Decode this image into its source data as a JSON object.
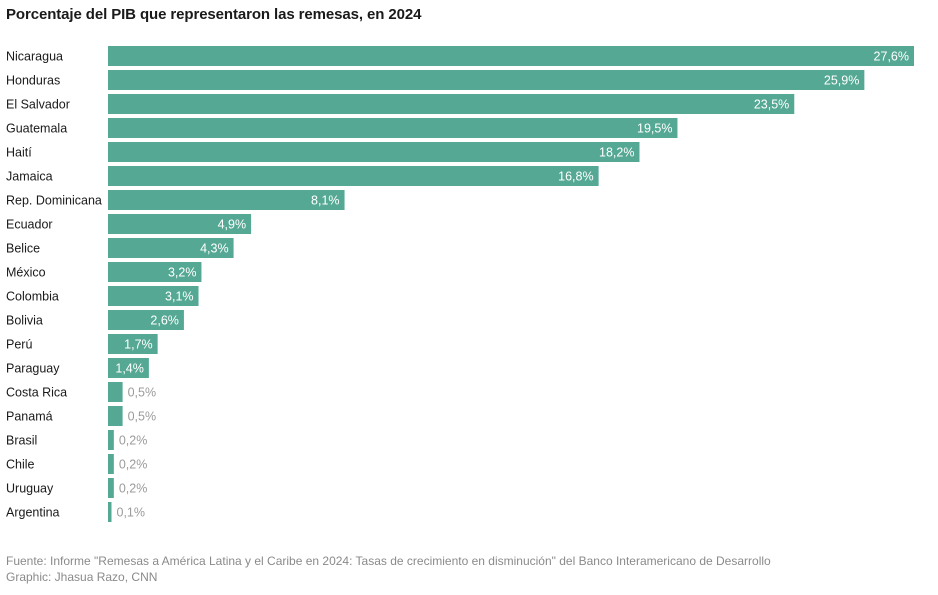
{
  "title": "Porcentaje del PIB que representaron las remesas, en 2024",
  "source": {
    "line1": "Fuente: Informe \"Remesas a América Latina y el Caribe en 2024: Tasas de crecimiento en disminución\" del Banco Interamericano de Desarrollo",
    "line2": "Graphic: Jhasua Razo, CNN"
  },
  "colors": {
    "bar": "#55a994",
    "label_inside": "#ffffff",
    "label_outside": "#9b9b9b",
    "category": "#1a1a1a"
  },
  "chart_data": {
    "type": "bar",
    "orientation": "horizontal",
    "title": "Porcentaje del PIB que representaron las remesas, en 2024",
    "xlabel": "",
    "ylabel": "",
    "xlim": [
      0,
      27.6
    ],
    "grid": false,
    "categories": [
      "Nicaragua",
      "Honduras",
      "El Salvador",
      "Guatemala",
      "Haití",
      "Jamaica",
      "Rep. Dominicana",
      "Ecuador",
      "Belice",
      "México",
      "Colombia",
      "Bolivia",
      "Perú",
      "Paraguay",
      "Costa Rica",
      "Panamá",
      "Brasil",
      "Chile",
      "Uruguay",
      "Argentina"
    ],
    "values": [
      27.6,
      25.9,
      23.5,
      19.5,
      18.2,
      16.8,
      8.1,
      4.9,
      4.3,
      3.2,
      3.1,
      2.6,
      1.7,
      1.4,
      0.5,
      0.5,
      0.2,
      0.2,
      0.2,
      0.1
    ],
    "value_labels": [
      "27,6%",
      "25,9%",
      "23,5%",
      "19,5%",
      "18,2%",
      "16,8%",
      "8,1%",
      "4,9%",
      "4,3%",
      "3,2%",
      "3,1%",
      "2,6%",
      "1,7%",
      "1,4%",
      "0,5%",
      "0,5%",
      "0,2%",
      "0,2%",
      "0,2%",
      "0,1%"
    ]
  }
}
